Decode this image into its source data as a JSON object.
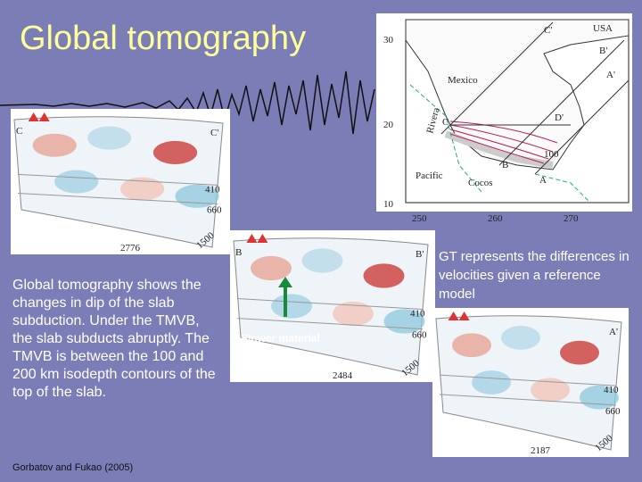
{
  "header": {
    "title": "Global tomography"
  },
  "body": {
    "text": "Global tomography shows the changes in dip of the slab subduction. Under the TMVB, the slab subducts abruptly. The TMVB is between the 100 and 200 km isodepth contours of the top of the slab.",
    "citation": "Gorbatov and Fukao (2005)",
    "note": "GT represents the differences in velocities given a reference model",
    "arrow_label": "Slower material than the surrounding."
  },
  "map": {
    "lat_labels": [
      "30",
      "20",
      "10"
    ],
    "lon_labels": [
      "250",
      "260",
      "270"
    ],
    "places": [
      "USA",
      "Mexico",
      "Pacific",
      "Cocos",
      "Rivera"
    ],
    "profile_labels": [
      "C'",
      "B'",
      "A'",
      "D'",
      "C",
      "B",
      "A",
      "100"
    ]
  },
  "sections": [
    {
      "left": "C",
      "right": "C'",
      "depths": [
        "410",
        "660"
      ],
      "width": "2776",
      "bottom": "1500"
    },
    {
      "left": "B",
      "right": "B'",
      "depths": [
        "410",
        "660"
      ],
      "width": "2484",
      "bottom": "1500"
    },
    {
      "right": "A'",
      "depths": [
        "410",
        "660"
      ],
      "width": "2187",
      "bottom": "1500"
    }
  ]
}
